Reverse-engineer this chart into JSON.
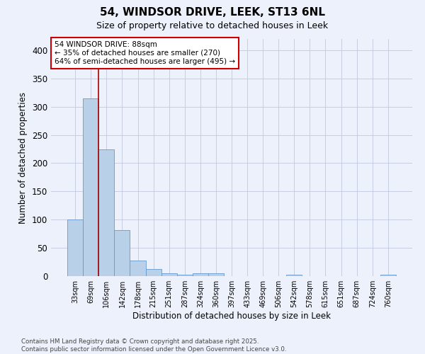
{
  "title_line1": "54, WINDSOR DRIVE, LEEK, ST13 6NL",
  "title_line2": "Size of property relative to detached houses in Leek",
  "xlabel": "Distribution of detached houses by size in Leek",
  "ylabel": "Number of detached properties",
  "bar_labels": [
    "33sqm",
    "69sqm",
    "106sqm",
    "142sqm",
    "178sqm",
    "215sqm",
    "251sqm",
    "287sqm",
    "324sqm",
    "360sqm",
    "397sqm",
    "433sqm",
    "469sqm",
    "506sqm",
    "542sqm",
    "578sqm",
    "615sqm",
    "651sqm",
    "687sqm",
    "724sqm",
    "760sqm"
  ],
  "bar_heights": [
    100,
    315,
    225,
    82,
    27,
    13,
    5,
    3,
    5,
    5,
    0,
    0,
    0,
    0,
    3,
    0,
    0,
    0,
    0,
    0,
    3
  ],
  "bar_color": "#b8d0e8",
  "bar_edge_color": "#6699cc",
  "background_color": "#edf1fb",
  "red_line_x": 1.5,
  "annotation_text": "54 WINDSOR DRIVE: 88sqm\n← 35% of detached houses are smaller (270)\n64% of semi-detached houses are larger (495) →",
  "annotation_box_color": "#ffffff",
  "annotation_box_edge": "#cc0000",
  "footer_line1": "Contains HM Land Registry data © Crown copyright and database right 2025.",
  "footer_line2": "Contains public sector information licensed under the Open Government Licence v3.0.",
  "ylim": [
    0,
    420
  ],
  "yticks": [
    0,
    50,
    100,
    150,
    200,
    250,
    300,
    350,
    400
  ]
}
